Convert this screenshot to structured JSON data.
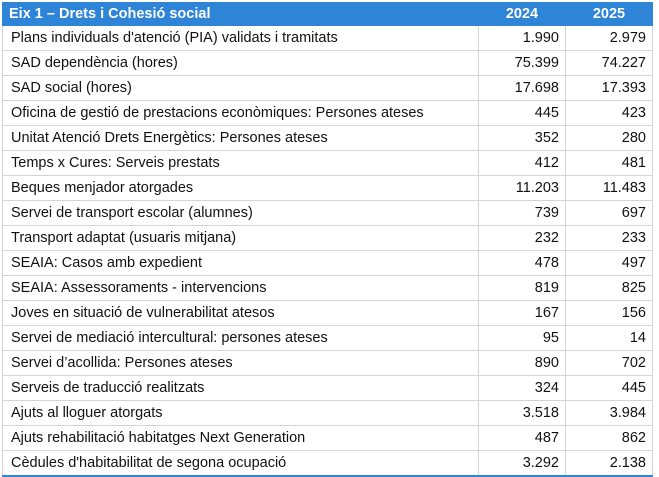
{
  "header": {
    "title": "Eix 1 – Drets i Cohesió social",
    "col_2024": "2024",
    "col_2025": "2025"
  },
  "rows": [
    {
      "label": "Plans individuals d'atenció (PIA) validats  i tramitats",
      "v2024": "1.990",
      "v2025": "2.979"
    },
    {
      "label": "SAD dependència (hores)",
      "v2024": "75.399",
      "v2025": "74.227"
    },
    {
      "label": "SAD social (hores)",
      "v2024": "17.698",
      "v2025": "17.393"
    },
    {
      "label": "Oficina de gestió de prestacions econòmiques: Persones ateses",
      "v2024": "445",
      "v2025": "423"
    },
    {
      "label": "Unitat Atenció Drets Energètics: Persones ateses",
      "v2024": "352",
      "v2025": "280"
    },
    {
      "label": "Temps x Cures: Serveis prestats",
      "v2024": "412",
      "v2025": "481"
    },
    {
      "label": "Beques menjador atorgades",
      "v2024": "11.203",
      "v2025": "11.483"
    },
    {
      "label": "Servei de transport escolar (alumnes)",
      "v2024": "739",
      "v2025": "697"
    },
    {
      "label": "Transport adaptat (usuaris mitjana)",
      "v2024": "232",
      "v2025": "233"
    },
    {
      "label": "SEAIA: Casos amb expedient",
      "v2024": "478",
      "v2025": "497"
    },
    {
      "label": "SEAIA:  Assessoraments - intervencions",
      "v2024": "819",
      "v2025": "825"
    },
    {
      "label": "Joves en situació de vulnerabilitat atesos",
      "v2024": "167",
      "v2025": "156"
    },
    {
      "label": "Servei de mediació intercultural: persones ateses",
      "v2024": "95",
      "v2025": "14"
    },
    {
      "label": "Servei d’acollida: Persones ateses",
      "v2024": "890",
      "v2025": "702"
    },
    {
      "label": "Serveis de traducció realitzats",
      "v2024": "324",
      "v2025": "445"
    },
    {
      "label": "Ajuts al lloguer atorgats",
      "v2024": "3.518",
      "v2025": "3.984"
    },
    {
      "label": "Ajuts rehabilitació habitatges Next Generation",
      "v2024": "487",
      "v2025": "862"
    },
    {
      "label": "Cèdules d'habitabilitat de segona ocupació",
      "v2024": "3.292",
      "v2025": "2.138"
    }
  ]
}
